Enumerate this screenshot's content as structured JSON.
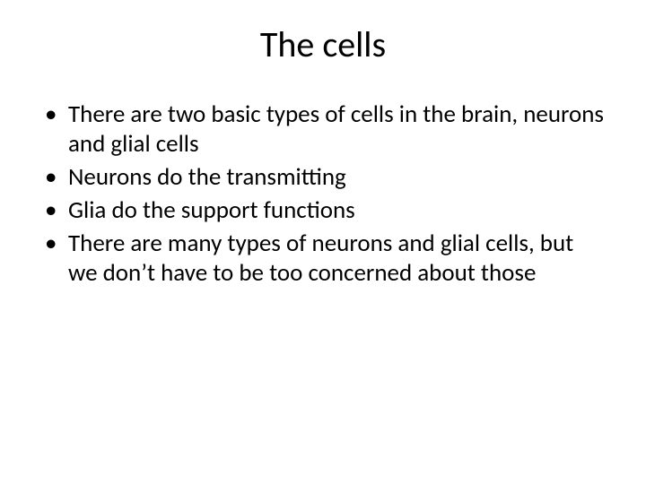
{
  "slide": {
    "title": "The cells",
    "title_fontsize": 40,
    "body_fontsize": 27,
    "background_color": "#ffffff",
    "text_color": "#000000",
    "bullets": [
      "There are two basic types of cells in the brain, neurons and glial cells",
      "Neurons do the transmitting",
      "Glia do the support functions",
      "There are many types of neurons and glial cells, but we don’t have to be too concerned about those"
    ]
  }
}
